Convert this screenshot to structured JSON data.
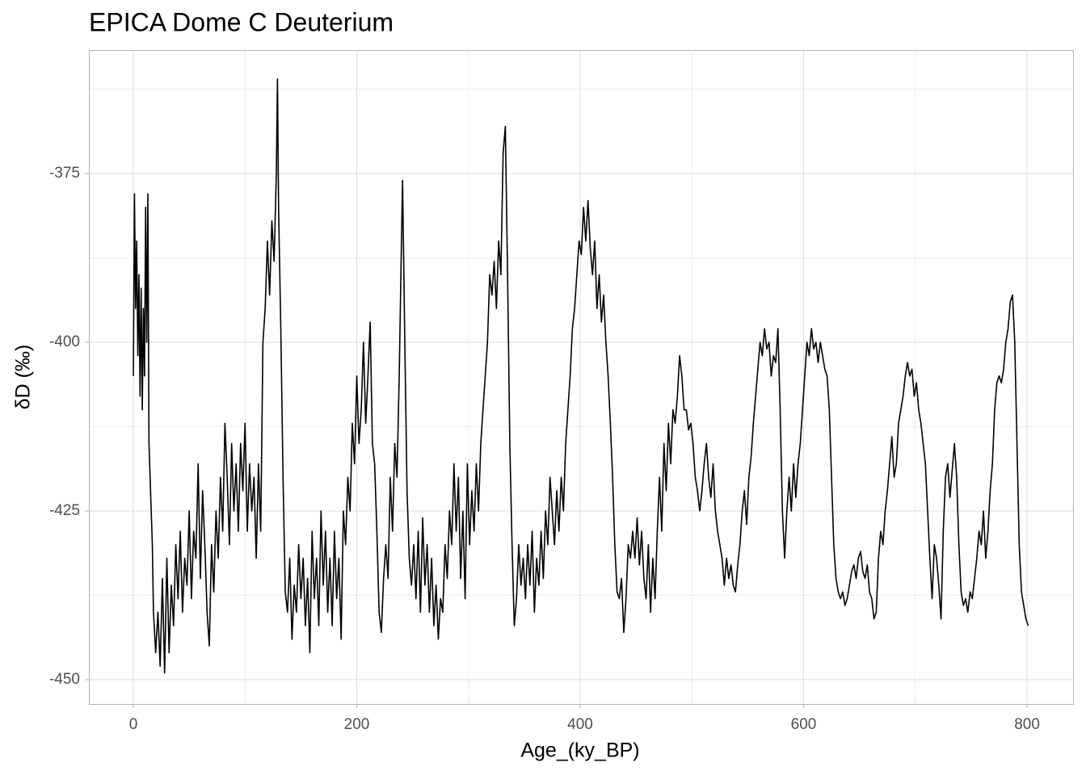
{
  "chart_data": {
    "type": "line",
    "title": "EPICA Dome C Deuterium",
    "xlabel": "Age_(ky_BP)",
    "ylabel": "δD (‰)",
    "xlim": [
      -39.8,
      841.2
    ],
    "ylim": [
      -453.6,
      -356.7
    ],
    "xticks": [
      0,
      200,
      400,
      600,
      800
    ],
    "yticks": [
      -450,
      -425,
      -400,
      -375
    ],
    "xminor": [
      100,
      300,
      500,
      700
    ],
    "yminor": [
      -437.5,
      -412.5,
      -387.5,
      -362.5
    ],
    "grid": true,
    "x": [
      0,
      1,
      2,
      3,
      4,
      5,
      6,
      7,
      8,
      9,
      10,
      11,
      12,
      13,
      14,
      15,
      17,
      18,
      20,
      22,
      24,
      26,
      28,
      30,
      32,
      34,
      36,
      38,
      40,
      42,
      44,
      46,
      48,
      50,
      52,
      54,
      56,
      58,
      60,
      62,
      64,
      66,
      68,
      70,
      72,
      74,
      76,
      78,
      80,
      82,
      84,
      86,
      88,
      90,
      92,
      94,
      96,
      98,
      100,
      102,
      104,
      106,
      108,
      110,
      112,
      114,
      116,
      118,
      120,
      122,
      124,
      126,
      128,
      129,
      130,
      132,
      134,
      136,
      138,
      140,
      142,
      144,
      146,
      148,
      150,
      152,
      154,
      156,
      158,
      160,
      162,
      164,
      166,
      168,
      170,
      172,
      174,
      176,
      178,
      180,
      182,
      184,
      186,
      188,
      190,
      192,
      194,
      196,
      198,
      200,
      202,
      204,
      206,
      208,
      210,
      212,
      214,
      216,
      218,
      220,
      222,
      224,
      226,
      228,
      230,
      232,
      234,
      236,
      238,
      240,
      241,
      243,
      245,
      247,
      249,
      251,
      253,
      255,
      257,
      259,
      261,
      263,
      265,
      267,
      269,
      271,
      273,
      275,
      277,
      279,
      281,
      283,
      285,
      287,
      289,
      291,
      293,
      295,
      297,
      299,
      301,
      303,
      305,
      307,
      309,
      311,
      313,
      315,
      317,
      319,
      321,
      323,
      325,
      327,
      329,
      331,
      333,
      335,
      337,
      339,
      341,
      343,
      345,
      347,
      349,
      351,
      353,
      355,
      357,
      359,
      361,
      363,
      365,
      367,
      369,
      371,
      373,
      375,
      377,
      379,
      381,
      383,
      385,
      387,
      389,
      391,
      393,
      395,
      397,
      399,
      401,
      403,
      405,
      407,
      409,
      411,
      413,
      415,
      417,
      419,
      421,
      423,
      425,
      427,
      429,
      431,
      433,
      435,
      437,
      439,
      441,
      443,
      445,
      447,
      449,
      451,
      453,
      455,
      457,
      459,
      461,
      463,
      465,
      467,
      469,
      471,
      473,
      475,
      477,
      479,
      481,
      483,
      485,
      487,
      489,
      491,
      493,
      495,
      497,
      499,
      501,
      503,
      505,
      507,
      509,
      511,
      513,
      515,
      517,
      519,
      521,
      523,
      525,
      527,
      529,
      531,
      533,
      535,
      537,
      539,
      541,
      543,
      545,
      547,
      549,
      551,
      553,
      555,
      557,
      559,
      561,
      563,
      565,
      567,
      569,
      571,
      573,
      575,
      577,
      579,
      581,
      583,
      585,
      587,
      589,
      591,
      593,
      595,
      597,
      599,
      601,
      603,
      605,
      607,
      609,
      611,
      613,
      615,
      617,
      619,
      621,
      623,
      625,
      627,
      629,
      631,
      633,
      635,
      637,
      639,
      641,
      643,
      645,
      647,
      649,
      651,
      653,
      655,
      657,
      659,
      661,
      663,
      665,
      667,
      669,
      671,
      673,
      675,
      677,
      679,
      681,
      683,
      685,
      687,
      689,
      691,
      693,
      695,
      697,
      699,
      701,
      703,
      705,
      707,
      709,
      711,
      713,
      715,
      717,
      719,
      721,
      723,
      725,
      727,
      729,
      731,
      733,
      735,
      737,
      739,
      741,
      743,
      745,
      747,
      749,
      751,
      753,
      755,
      757,
      759,
      761,
      763,
      765,
      767,
      769,
      771,
      773,
      775,
      777,
      779,
      781,
      783,
      785,
      787,
      789,
      791,
      793,
      795,
      797,
      799,
      801
    ],
    "series": [
      {
        "name": "δD",
        "color": "#000000",
        "values": [
          -405,
          -378,
          -395,
          -385,
          -402,
          -390,
          -408,
          -392,
          -410,
          -395,
          -405,
          -380,
          -400,
          -378,
          -415,
          -420,
          -430,
          -440,
          -446,
          -440,
          -448,
          -435,
          -449,
          -432,
          -446,
          -436,
          -442,
          -430,
          -438,
          -428,
          -440,
          -432,
          -436,
          -425,
          -438,
          -428,
          -432,
          -418,
          -435,
          -422,
          -430,
          -440,
          -445,
          -430,
          -437,
          -425,
          -432,
          -420,
          -428,
          -412,
          -420,
          -430,
          -415,
          -425,
          -418,
          -428,
          -415,
          -422,
          -412,
          -428,
          -418,
          -425,
          -420,
          -432,
          -418,
          -428,
          -400,
          -395,
          -385,
          -393,
          -382,
          -388,
          -375,
          -361,
          -380,
          -398,
          -420,
          -437,
          -440,
          -432,
          -444,
          -436,
          -440,
          -430,
          -438,
          -432,
          -442,
          -435,
          -446,
          -428,
          -438,
          -432,
          -442,
          -425,
          -436,
          -428,
          -440,
          -432,
          -442,
          -428,
          -438,
          -432,
          -444,
          -425,
          -430,
          -420,
          -425,
          -412,
          -418,
          -405,
          -415,
          -410,
          -400,
          -412,
          -405,
          -397,
          -415,
          -418,
          -428,
          -440,
          -443,
          -435,
          -430,
          -435,
          -420,
          -428,
          -415,
          -420,
          -405,
          -385,
          -376,
          -400,
          -422,
          -432,
          -436,
          -430,
          -438,
          -428,
          -440,
          -426,
          -436,
          -430,
          -440,
          -432,
          -442,
          -436,
          -444,
          -438,
          -440,
          -430,
          -435,
          -425,
          -430,
          -418,
          -428,
          -420,
          -435,
          -425,
          -438,
          -418,
          -430,
          -422,
          -428,
          -418,
          -425,
          -415,
          -410,
          -405,
          -400,
          -390,
          -393,
          -388,
          -395,
          -385,
          -390,
          -372,
          -368,
          -390,
          -415,
          -430,
          -442,
          -438,
          -430,
          -436,
          -432,
          -438,
          -430,
          -436,
          -428,
          -440,
          -432,
          -436,
          -428,
          -435,
          -425,
          -430,
          -420,
          -425,
          -430,
          -422,
          -428,
          -420,
          -425,
          -415,
          -410,
          -405,
          -398,
          -395,
          -390,
          -385,
          -387,
          -380,
          -385,
          -379,
          -386,
          -390,
          -385,
          -395,
          -390,
          -397,
          -393,
          -400,
          -405,
          -412,
          -420,
          -430,
          -437,
          -438,
          -435,
          -443,
          -438,
          -430,
          -432,
          -428,
          -432,
          -426,
          -433,
          -428,
          -435,
          -438,
          -430,
          -440,
          -432,
          -438,
          -428,
          -420,
          -428,
          -415,
          -422,
          -412,
          -418,
          -410,
          -412,
          -408,
          -402,
          -405,
          -410,
          -410,
          -413,
          -412,
          -415,
          -420,
          -422,
          -425,
          -422,
          -418,
          -415,
          -420,
          -423,
          -418,
          -425,
          -428,
          -430,
          -432,
          -436,
          -432,
          -435,
          -433,
          -436,
          -437,
          -433,
          -430,
          -425,
          -422,
          -427,
          -420,
          -417,
          -412,
          -408,
          -404,
          -400,
          -402,
          -398,
          -401,
          -400,
          -405,
          -402,
          -403,
          -398,
          -410,
          -425,
          -432,
          -425,
          -420,
          -425,
          -418,
          -423,
          -418,
          -415,
          -410,
          -405,
          -400,
          -402,
          -398,
          -401,
          -400,
          -403,
          -400,
          -402,
          -404,
          -405,
          -410,
          -420,
          -430,
          -435,
          -437,
          -438,
          -437,
          -439,
          -438,
          -436,
          -434,
          -433,
          -435,
          -432,
          -431,
          -434,
          -435,
          -433,
          -437,
          -438,
          -441,
          -440,
          -432,
          -428,
          -430,
          -425,
          -422,
          -418,
          -414,
          -420,
          -418,
          -412,
          -410,
          -408,
          -405,
          -403,
          -405,
          -404,
          -408,
          -406,
          -410,
          -412,
          -415,
          -418,
          -425,
          -432,
          -438,
          -430,
          -432,
          -436,
          -441,
          -428,
          -420,
          -418,
          -423,
          -419,
          -415,
          -420,
          -430,
          -437,
          -439,
          -438,
          -440,
          -437,
          -438,
          -435,
          -432,
          -428,
          -430,
          -425,
          -432,
          -428,
          -422,
          -418,
          -410,
          -406,
          -405,
          -406,
          -404,
          -400,
          -398,
          -394,
          -393,
          -400,
          -415,
          -430,
          -437,
          -439,
          -441,
          -442
        ]
      }
    ]
  }
}
